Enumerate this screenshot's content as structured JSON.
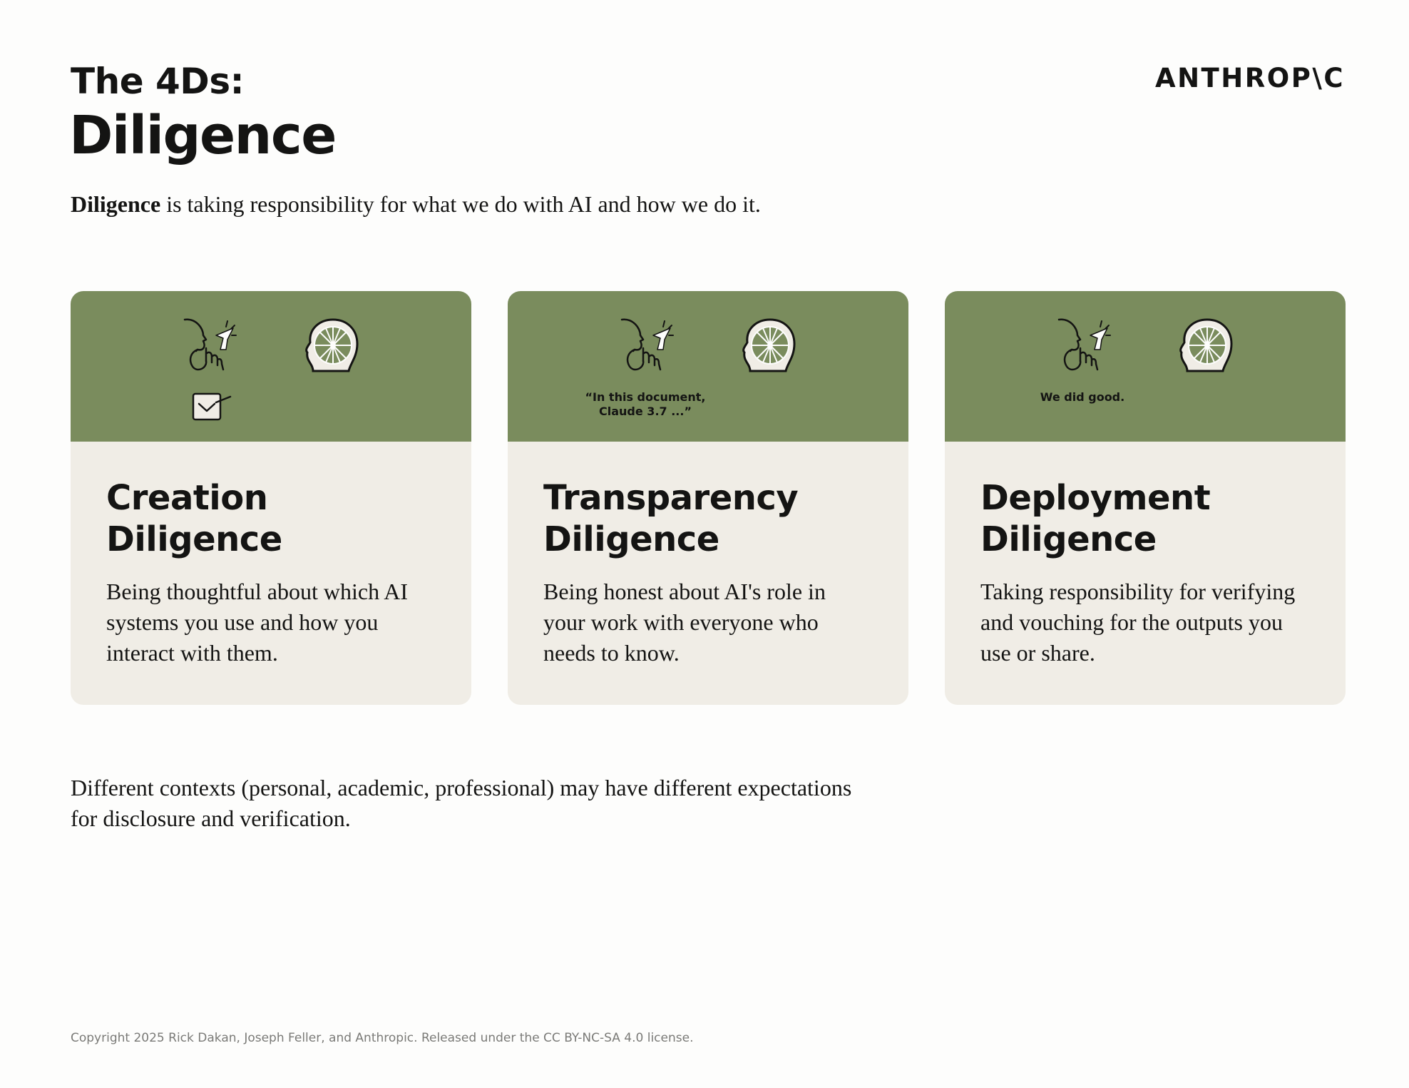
{
  "header": {
    "kicker": "The 4Ds:",
    "title": "Diligence",
    "logo": "ANTHROP\\C"
  },
  "intro": {
    "term": "Diligence",
    "text": " is taking responsibility for what we do with AI and how we do it."
  },
  "cards": [
    {
      "icon": "envelope-icon",
      "caption": "",
      "title_line1": "Creation",
      "title_line2": "Diligence",
      "text": "Being thoughtful about which AI systems you use and how you interact with them."
    },
    {
      "icon": "speech-caption",
      "caption": "“In this document,\nClaude 3.7 ...”",
      "title_line1": "Transparency",
      "title_line2": "Diligence",
      "text": "Being honest about AI's role in your work with everyone who needs to know."
    },
    {
      "icon": "speech-caption",
      "caption": "We did good.",
      "title_line1": "Deployment",
      "title_line2": "Diligence",
      "text": "Taking responsibility for verifying and vouching for the outputs you use or share."
    }
  ],
  "note": "Different contexts (personal, academic, professional) may have different expectations for disclosure and verification.",
  "footer": "Copyright 2025 Rick Dakan, Joseph Feller, and Anthropic. Released under the CC BY-NC-SA 4.0 license.",
  "colors": {
    "card_header": "#7a8c5d",
    "card_body": "#f0ede6",
    "text": "#141413",
    "footer_text": "#7a7a77"
  }
}
